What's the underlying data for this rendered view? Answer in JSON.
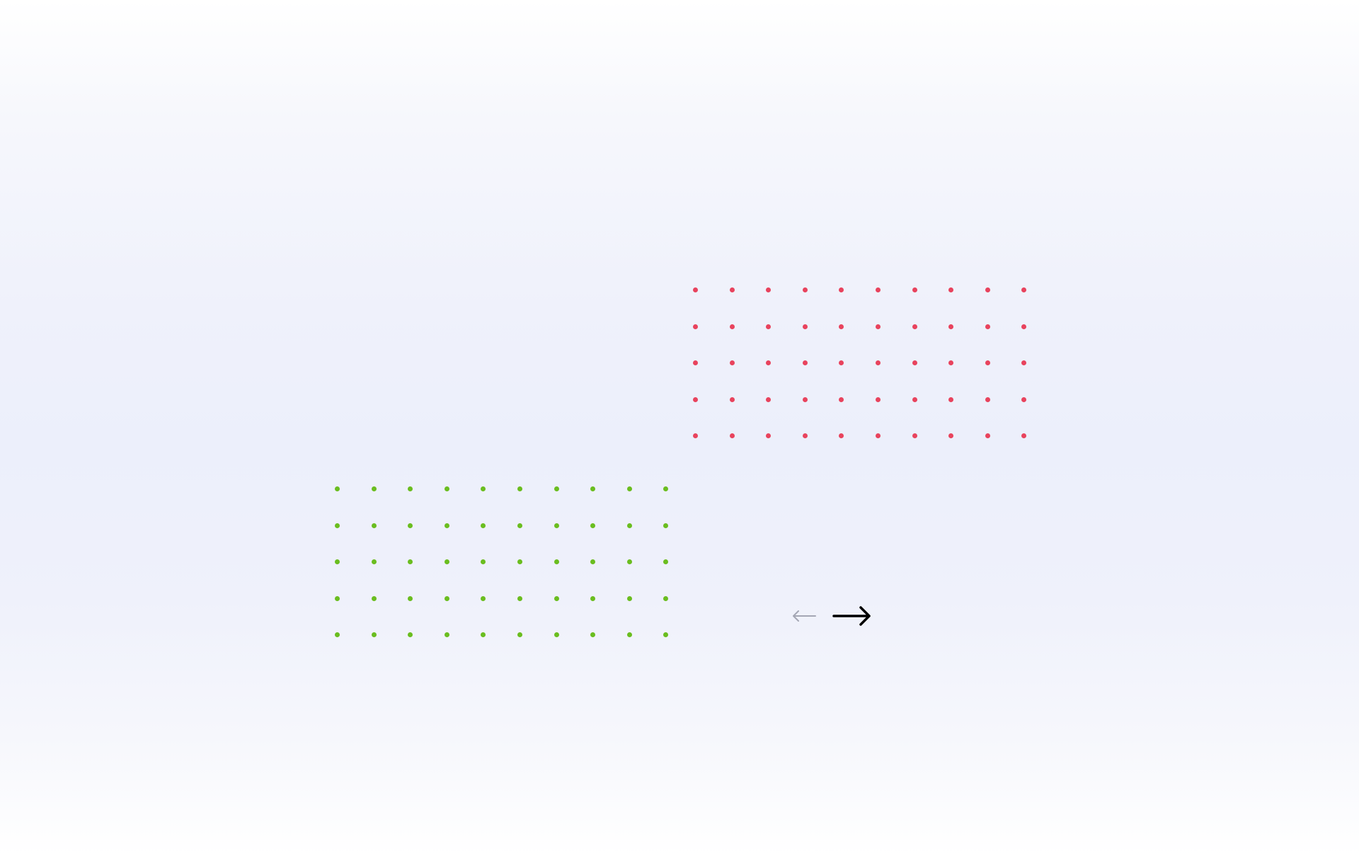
{
  "colors": {
    "grid_top_right": "#e8435d",
    "grid_bottom_left": "#6abd1f",
    "prev_arrow": "#a4a7b4",
    "next_arrow": "#000000"
  },
  "grids": [
    {
      "id": "grid-red",
      "name": "dot-grid-red",
      "color_key": "grid_top_right",
      "rows": 5,
      "cols": 10
    },
    {
      "id": "grid-green",
      "name": "dot-grid-green",
      "color_key": "grid_bottom_left",
      "rows": 5,
      "cols": 10
    }
  ],
  "pager": {
    "prev_icon": "arrow-left-icon",
    "next_icon": "arrow-right-icon"
  }
}
